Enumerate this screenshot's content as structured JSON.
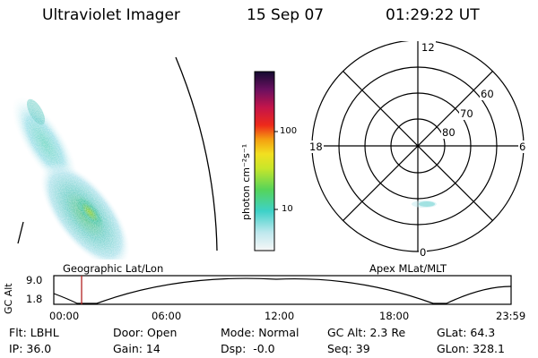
{
  "header": {
    "instrument": "Ultraviolet Imager",
    "date": "15 Sep 07",
    "time": "01:29:22 UT"
  },
  "colorbar": {
    "unit_label": "photon cm⁻²s⁻¹",
    "ticks": [
      "100",
      "10"
    ]
  },
  "polar_plot": {
    "mlt_labels": [
      "12",
      "18",
      "6",
      "0"
    ],
    "lat_labels": [
      "60",
      "70",
      "80"
    ]
  },
  "timeline": {
    "y_axis_label": "GC Alt",
    "y_ticks": [
      "9.0",
      "1.8"
    ],
    "left_caption": "Geographic Lat/Lon",
    "right_caption": "Apex MLat/MLT",
    "x_ticks": [
      "00:00",
      "06:00",
      "12:00",
      "18:00",
      "23:59"
    ]
  },
  "status": {
    "flt": "Flt: LBHL",
    "door": "Door: Open",
    "mode": "Mode: Normal",
    "gc_alt": "GC Alt: 2.3 Re",
    "glat": "GLat: 64.3",
    "ip": "IP: 36.0",
    "gain": "Gain: 14",
    "dsp": "Dsp:  -0.0",
    "seq": "Seq: 39",
    "glon": "GLon: 328.1"
  }
}
